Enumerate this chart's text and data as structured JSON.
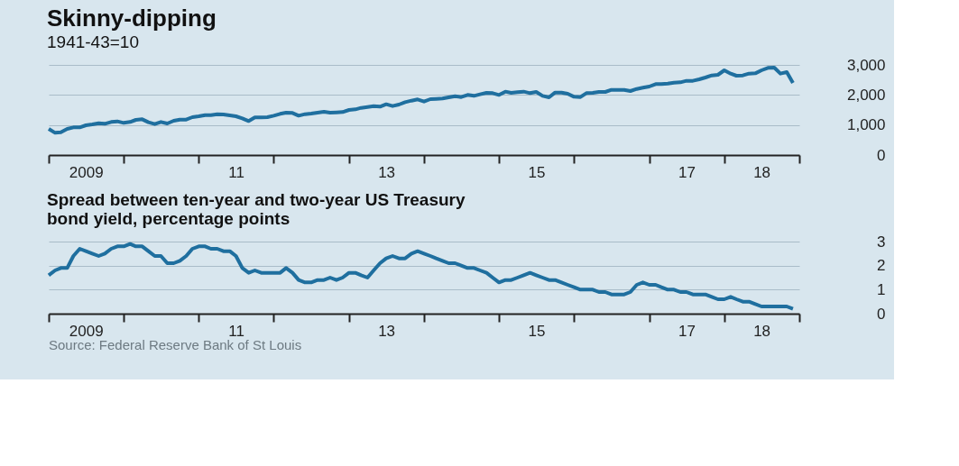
{
  "chart_data": [
    {
      "type": "line",
      "title": "Skinny-dipping",
      "subtitle": "1941-43=10",
      "x": [
        "2009-01",
        "2009-02",
        "2009-03",
        "2009-04",
        "2009-05",
        "2009-06",
        "2009-07",
        "2009-08",
        "2009-09",
        "2009-10",
        "2009-11",
        "2009-12",
        "2010-01",
        "2010-02",
        "2010-03",
        "2010-04",
        "2010-05",
        "2010-06",
        "2010-07",
        "2010-08",
        "2010-09",
        "2010-10",
        "2010-11",
        "2010-12",
        "2011-01",
        "2011-02",
        "2011-03",
        "2011-04",
        "2011-05",
        "2011-06",
        "2011-07",
        "2011-08",
        "2011-09",
        "2011-10",
        "2011-11",
        "2011-12",
        "2012-01",
        "2012-02",
        "2012-03",
        "2012-04",
        "2012-05",
        "2012-06",
        "2012-07",
        "2012-08",
        "2012-09",
        "2012-10",
        "2012-11",
        "2012-12",
        "2013-01",
        "2013-02",
        "2013-03",
        "2013-04",
        "2013-05",
        "2013-06",
        "2013-07",
        "2013-08",
        "2013-09",
        "2013-10",
        "2013-11",
        "2013-12",
        "2014-01",
        "2014-02",
        "2014-03",
        "2014-04",
        "2014-05",
        "2014-06",
        "2014-07",
        "2014-08",
        "2014-09",
        "2014-10",
        "2014-11",
        "2014-12",
        "2015-01",
        "2015-02",
        "2015-03",
        "2015-04",
        "2015-05",
        "2015-06",
        "2015-07",
        "2015-08",
        "2015-09",
        "2015-10",
        "2015-11",
        "2015-12",
        "2016-01",
        "2016-02",
        "2016-03",
        "2016-04",
        "2016-05",
        "2016-06",
        "2016-07",
        "2016-08",
        "2016-09",
        "2016-10",
        "2016-11",
        "2016-12",
        "2017-01",
        "2017-02",
        "2017-03",
        "2017-04",
        "2017-05",
        "2017-06",
        "2017-07",
        "2017-08",
        "2017-09",
        "2017-10",
        "2017-11",
        "2017-12",
        "2018-01",
        "2018-02",
        "2018-03",
        "2018-04",
        "2018-05",
        "2018-06",
        "2018-07",
        "2018-08",
        "2018-09",
        "2018-10",
        "2018-11",
        "2018-12"
      ],
      "series": [
        {
          "color": "#1f6f9f",
          "values": [
            870,
            740,
            760,
            870,
            920,
            920,
            990,
            1020,
            1060,
            1040,
            1100,
            1120,
            1070,
            1100,
            1170,
            1190,
            1090,
            1030,
            1100,
            1050,
            1140,
            1180,
            1180,
            1260,
            1290,
            1330,
            1330,
            1360,
            1350,
            1320,
            1290,
            1220,
            1130,
            1250,
            1250,
            1260,
            1310,
            1370,
            1410,
            1400,
            1310,
            1360,
            1380,
            1410,
            1440,
            1410,
            1420,
            1430,
            1500,
            1520,
            1570,
            1600,
            1630,
            1610,
            1690,
            1630,
            1680,
            1760,
            1810,
            1850,
            1780,
            1860,
            1870,
            1880,
            1920,
            1960,
            1930,
            2000,
            1970,
            2020,
            2070,
            2060,
            2000,
            2110,
            2070,
            2090,
            2110,
            2060,
            2100,
            1970,
            1920,
            2080,
            2080,
            2040,
            1940,
            1930,
            2060,
            2070,
            2100,
            2100,
            2170,
            2170,
            2170,
            2130,
            2200,
            2240,
            2280,
            2360,
            2360,
            2380,
            2410,
            2420,
            2470,
            2470,
            2520,
            2580,
            2650,
            2670,
            2820,
            2710,
            2640,
            2650,
            2710,
            2720,
            2820,
            2900,
            2910,
            2710,
            2760,
            2400
          ]
        }
      ],
      "xlim": [
        "2009-01-01",
        "2019-01-01"
      ],
      "xticks": [
        {
          "value": "2009-01-01",
          "label": null
        },
        {
          "value": "2009-07-01",
          "label": "2009"
        },
        {
          "value": "2010-01-01",
          "label": null
        },
        {
          "value": "2011-01-01",
          "label": null
        },
        {
          "value": "2011-07-01",
          "label": "11"
        },
        {
          "value": "2012-01-01",
          "label": null
        },
        {
          "value": "2013-01-01",
          "label": null
        },
        {
          "value": "2013-07-01",
          "label": "13"
        },
        {
          "value": "2014-01-01",
          "label": null
        },
        {
          "value": "2015-01-01",
          "label": null
        },
        {
          "value": "2015-07-01",
          "label": "15"
        },
        {
          "value": "2016-01-01",
          "label": null
        },
        {
          "value": "2017-01-01",
          "label": null
        },
        {
          "value": "2017-07-01",
          "label": "17"
        },
        {
          "value": "2018-01-01",
          "label": null
        },
        {
          "value": "2018-07-01",
          "label": "18"
        },
        {
          "value": "2019-01-01",
          "label": null
        }
      ],
      "ylim": [
        0,
        3000
      ],
      "yticks": [
        {
          "value": 0,
          "label": "0"
        },
        {
          "value": 1000,
          "label": "1,000"
        },
        {
          "value": 2000,
          "label": "2,000"
        },
        {
          "value": 3000,
          "label": "3,000"
        }
      ],
      "grid": "y"
    },
    {
      "type": "line",
      "title": "Spread between ten-year and two-year US Treasury bond yield, percentage points",
      "annotations": [
        "Source: Federal Reserve Bank of St Louis"
      ],
      "x": [
        "2009-01",
        "2009-02",
        "2009-03",
        "2009-04",
        "2009-05",
        "2009-06",
        "2009-07",
        "2009-08",
        "2009-09",
        "2009-10",
        "2009-11",
        "2009-12",
        "2010-01",
        "2010-02",
        "2010-03",
        "2010-04",
        "2010-05",
        "2010-06",
        "2010-07",
        "2010-08",
        "2010-09",
        "2010-10",
        "2010-11",
        "2010-12",
        "2011-01",
        "2011-02",
        "2011-03",
        "2011-04",
        "2011-05",
        "2011-06",
        "2011-07",
        "2011-08",
        "2011-09",
        "2011-10",
        "2011-11",
        "2011-12",
        "2012-01",
        "2012-02",
        "2012-03",
        "2012-04",
        "2012-05",
        "2012-06",
        "2012-07",
        "2012-08",
        "2012-09",
        "2012-10",
        "2012-11",
        "2012-12",
        "2013-01",
        "2013-02",
        "2013-03",
        "2013-04",
        "2013-05",
        "2013-06",
        "2013-07",
        "2013-08",
        "2013-09",
        "2013-10",
        "2013-11",
        "2013-12",
        "2014-01",
        "2014-02",
        "2014-03",
        "2014-04",
        "2014-05",
        "2014-06",
        "2014-07",
        "2014-08",
        "2014-09",
        "2014-10",
        "2014-11",
        "2014-12",
        "2015-01",
        "2015-02",
        "2015-03",
        "2015-04",
        "2015-05",
        "2015-06",
        "2015-07",
        "2015-08",
        "2015-09",
        "2015-10",
        "2015-11",
        "2015-12",
        "2016-01",
        "2016-02",
        "2016-03",
        "2016-04",
        "2016-05",
        "2016-06",
        "2016-07",
        "2016-08",
        "2016-09",
        "2016-10",
        "2016-11",
        "2016-12",
        "2017-01",
        "2017-02",
        "2017-03",
        "2017-04",
        "2017-05",
        "2017-06",
        "2017-07",
        "2017-08",
        "2017-09",
        "2017-10",
        "2017-11",
        "2017-12",
        "2018-01",
        "2018-02",
        "2018-03",
        "2018-04",
        "2018-05",
        "2018-06",
        "2018-07",
        "2018-08",
        "2018-09",
        "2018-10",
        "2018-11",
        "2018-12"
      ],
      "series": [
        {
          "color": "#1f6f9f",
          "values": [
            1.6,
            1.8,
            1.9,
            1.9,
            2.4,
            2.7,
            2.6,
            2.5,
            2.4,
            2.5,
            2.7,
            2.8,
            2.8,
            2.9,
            2.8,
            2.8,
            2.6,
            2.4,
            2.4,
            2.1,
            2.1,
            2.2,
            2.4,
            2.7,
            2.8,
            2.8,
            2.7,
            2.7,
            2.6,
            2.6,
            2.4,
            1.9,
            1.7,
            1.8,
            1.7,
            1.7,
            1.7,
            1.7,
            1.9,
            1.7,
            1.4,
            1.3,
            1.3,
            1.4,
            1.4,
            1.5,
            1.4,
            1.5,
            1.7,
            1.7,
            1.6,
            1.5,
            1.8,
            2.1,
            2.3,
            2.4,
            2.3,
            2.3,
            2.5,
            2.6,
            2.5,
            2.4,
            2.3,
            2.2,
            2.1,
            2.1,
            2.0,
            1.9,
            1.9,
            1.8,
            1.7,
            1.5,
            1.3,
            1.4,
            1.4,
            1.5,
            1.6,
            1.7,
            1.6,
            1.5,
            1.4,
            1.4,
            1.3,
            1.2,
            1.1,
            1.0,
            1.0,
            1.0,
            0.9,
            0.9,
            0.8,
            0.8,
            0.8,
            0.9,
            1.2,
            1.3,
            1.2,
            1.2,
            1.1,
            1.0,
            1.0,
            0.9,
            0.9,
            0.8,
            0.8,
            0.8,
            0.7,
            0.6,
            0.6,
            0.7,
            0.6,
            0.5,
            0.5,
            0.4,
            0.3,
            0.3,
            0.3,
            0.3,
            0.3,
            0.2
          ]
        }
      ],
      "xlim": [
        "2009-01-01",
        "2019-01-01"
      ],
      "xticks": [
        {
          "value": "2009-01-01",
          "label": null
        },
        {
          "value": "2009-07-01",
          "label": "2009"
        },
        {
          "value": "2010-01-01",
          "label": null
        },
        {
          "value": "2011-01-01",
          "label": null
        },
        {
          "value": "2011-07-01",
          "label": "11"
        },
        {
          "value": "2012-01-01",
          "label": null
        },
        {
          "value": "2013-01-01",
          "label": null
        },
        {
          "value": "2013-07-01",
          "label": "13"
        },
        {
          "value": "2014-01-01",
          "label": null
        },
        {
          "value": "2015-01-01",
          "label": null
        },
        {
          "value": "2015-07-01",
          "label": "15"
        },
        {
          "value": "2016-01-01",
          "label": null
        },
        {
          "value": "2017-01-01",
          "label": null
        },
        {
          "value": "2017-07-01",
          "label": "17"
        },
        {
          "value": "2018-01-01",
          "label": null
        },
        {
          "value": "2018-07-01",
          "label": "18"
        },
        {
          "value": "2019-01-01",
          "label": null
        }
      ],
      "ylim": [
        0,
        3
      ],
      "yticks": [
        0,
        1,
        2,
        3
      ],
      "grid": "y"
    }
  ]
}
